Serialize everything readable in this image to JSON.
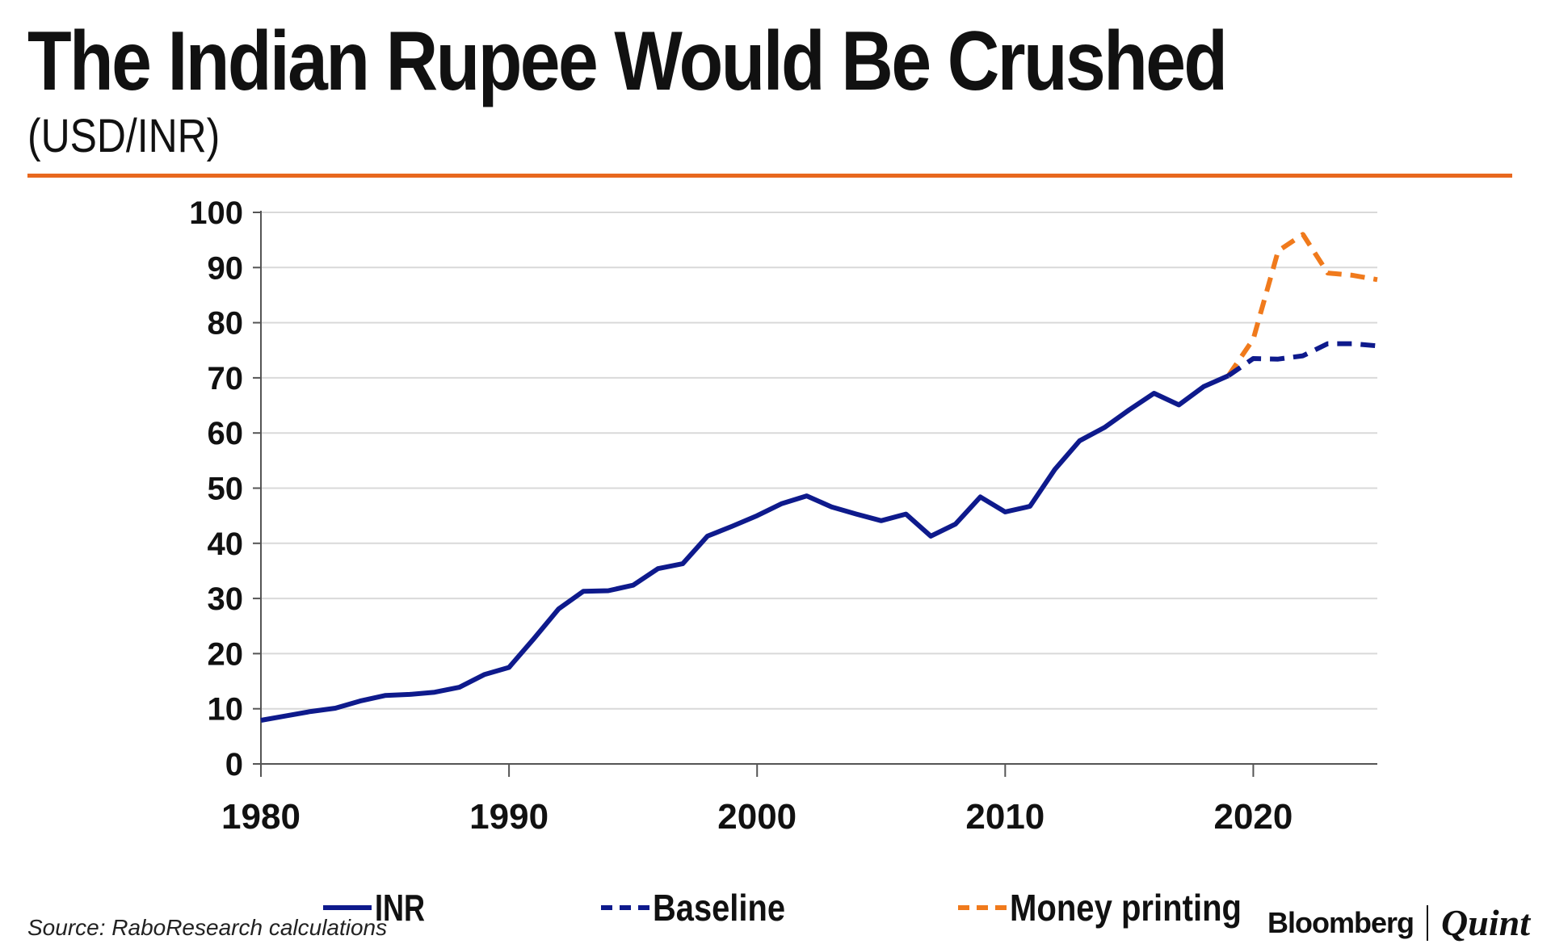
{
  "header": {
    "title": "The Indian Rupee Would Be Crushed",
    "subtitle": "(USD/INR)"
  },
  "footer": {
    "source": "Source: RaboResearch calculations",
    "brand_left": "Bloomberg",
    "brand_right": "Quint"
  },
  "colors": {
    "accent": "#e8681e",
    "inr": "#0e1a8c",
    "baseline": "#0e1a8c",
    "money_printing": "#f07a1c"
  },
  "chart_data": {
    "type": "line",
    "title": "The Indian Rupee Would Be Crushed",
    "subtitle": "(USD/INR)",
    "xlabel": "",
    "ylabel": "",
    "xlim": [
      1980,
      2025
    ],
    "ylim": [
      0,
      100
    ],
    "y_ticks": [
      0,
      10,
      20,
      30,
      40,
      50,
      60,
      70,
      80,
      90,
      100
    ],
    "x_ticks": [
      1980,
      1990,
      2000,
      2010,
      2020
    ],
    "grid": "horizontal",
    "legend_position": "bottom",
    "series": [
      {
        "name": "INR",
        "style": "solid",
        "color": "#0e1a8c",
        "x": [
          1980,
          1981,
          1982,
          1983,
          1984,
          1985,
          1986,
          1987,
          1988,
          1989,
          1990,
          1991,
          1992,
          1993,
          1994,
          1995,
          1996,
          1997,
          1998,
          1999,
          2000,
          2001,
          2002,
          2003,
          2004,
          2005,
          2006,
          2007,
          2008,
          2009,
          2010,
          2011,
          2012,
          2013,
          2014,
          2015,
          2016,
          2017,
          2018,
          2019
        ],
        "values": [
          7.9,
          8.7,
          9.5,
          10.1,
          11.4,
          12.4,
          12.6,
          13.0,
          13.9,
          16.2,
          17.5,
          22.7,
          28.1,
          31.3,
          31.4,
          32.4,
          35.4,
          36.3,
          41.3,
          43.1,
          45.0,
          47.2,
          48.6,
          46.6,
          45.3,
          44.1,
          45.3,
          41.3,
          43.5,
          48.4,
          45.7,
          46.7,
          53.4,
          58.6,
          61.0,
          64.2,
          67.2,
          65.1,
          68.4,
          70.4
        ]
      },
      {
        "name": "Baseline",
        "style": "dashed",
        "color": "#0e1a8c",
        "x": [
          2019,
          2020,
          2021,
          2022,
          2023,
          2024,
          2025
        ],
        "values": [
          70.4,
          73.5,
          73.4,
          74.0,
          76.2,
          76.2,
          75.8
        ]
      },
      {
        "name": "Money printing",
        "style": "dashed",
        "color": "#f07a1c",
        "x": [
          2019,
          2020,
          2021,
          2022,
          2023,
          2024,
          2025
        ],
        "values": [
          70.4,
          77.0,
          93.0,
          96.0,
          89.0,
          88.6,
          87.8
        ]
      }
    ]
  }
}
